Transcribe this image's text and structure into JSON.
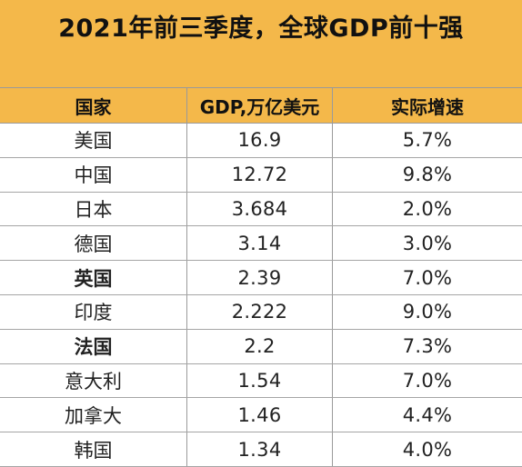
{
  "title": "2021年前三季度，全球GDP前十强",
  "columns": [
    "国家",
    "GDP,万亿美元",
    "实际增速"
  ],
  "rows": [
    {
      "country": "美国",
      "gdp": "16.9",
      "growth": "5.7%"
    },
    {
      "country": "中国",
      "gdp": "12.72",
      "growth": "9.8%"
    },
    {
      "country": "日本",
      "gdp": "3.684",
      "growth": "2.0%"
    },
    {
      "country": "德国",
      "gdp": "3.14",
      "growth": "3.0%"
    },
    {
      "country": "英国",
      "gdp": "2.39",
      "growth": "7.0%"
    },
    {
      "country": "印度",
      "gdp": "2.222",
      "growth": "9.0%"
    },
    {
      "country": "法国",
      "gdp": "2.2",
      "growth": "7.3%"
    },
    {
      "country": "意大利",
      "gdp": "1.54",
      "growth": "7.0%"
    },
    {
      "country": "加拿大",
      "gdp": "1.46",
      "growth": "4.4%"
    },
    {
      "country": "韩国",
      "gdp": "1.34",
      "growth": "4.0%"
    }
  ],
  "colors": {
    "header_bg": "#f4b84a",
    "grid_line": "#9a9a9a",
    "text": "#1a1a1a"
  }
}
